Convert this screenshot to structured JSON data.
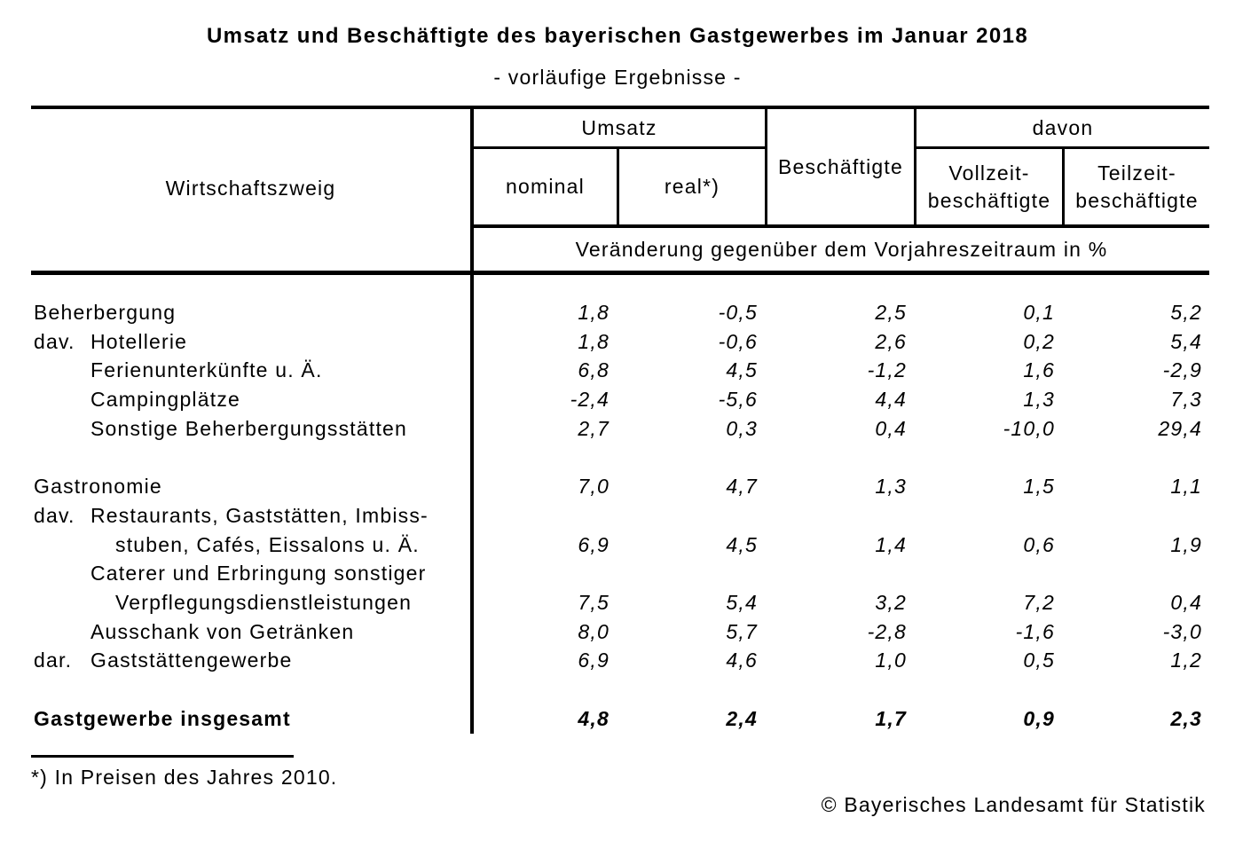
{
  "page": {
    "title": "Umsatz und Beschäftigte des bayerischen Gastgewerbes im Januar 2018",
    "subtitle": "- vorläufige Ergebnisse -",
    "footnote": "*) In Preisen des Jahres 2010.",
    "copyright": "© Bayerisches Landesamt für Statistik"
  },
  "colors": {
    "text": "#000000",
    "background": "#ffffff",
    "line": "#000000"
  },
  "table": {
    "header": {
      "wirtschaftszweig": "Wirtschaftszweig",
      "umsatz": "Umsatz",
      "nominal": "nominal",
      "real": "real*)",
      "beschaeftigte": "Beschäftigte",
      "davon": "davon",
      "vollzeit": [
        "Vollzeit-",
        "beschäftigte"
      ],
      "teilzeit": [
        "Teilzeit-",
        "beschäftigte"
      ],
      "unit": "Veränderung gegenüber dem Vorjahreszeitraum in %"
    },
    "columns": [
      "nominal",
      "real",
      "Beschäftigte",
      "Vollzeitbeschäftigte",
      "Teilzeitbeschäftigte"
    ],
    "rows": [
      {
        "prefix": "",
        "indent": 0,
        "label": "Beherbergung",
        "values": [
          "1,8",
          "-0,5",
          "2,5",
          "0,1",
          "5,2"
        ]
      },
      {
        "prefix": "dav.",
        "indent": 1,
        "label": "Hotellerie",
        "values": [
          "1,8",
          "-0,6",
          "2,6",
          "0,2",
          "5,4"
        ]
      },
      {
        "prefix": "",
        "indent": 1,
        "label": "Ferienunterkünfte u. Ä.",
        "values": [
          "6,8",
          "4,5",
          "-1,2",
          "1,6",
          "-2,9"
        ]
      },
      {
        "prefix": "",
        "indent": 1,
        "label": "Campingplätze",
        "values": [
          "-2,4",
          "-5,6",
          "4,4",
          "1,3",
          "7,3"
        ]
      },
      {
        "prefix": "",
        "indent": 1,
        "label": "Sonstige Beherbergungsstätten",
        "values": [
          "2,7",
          "0,3",
          "0,4",
          "-10,0",
          "29,4"
        ]
      },
      {
        "spacer": true
      },
      {
        "prefix": "",
        "indent": 0,
        "label": "Gastronomie",
        "values": [
          "7,0",
          "4,7",
          "1,3",
          "1,5",
          "1,1"
        ]
      },
      {
        "prefix": "dav.",
        "indent": 1,
        "label": "Restaurants, Gaststätten, Imbiss-",
        "values": [
          "",
          "",
          "",
          "",
          ""
        ]
      },
      {
        "prefix": "",
        "indent": 2,
        "label": "stuben, Cafés, Eissalons u. Ä.",
        "values": [
          "6,9",
          "4,5",
          "1,4",
          "0,6",
          "1,9"
        ]
      },
      {
        "prefix": "",
        "indent": 1,
        "label": "Caterer und Erbringung sonstiger",
        "values": [
          "",
          "",
          "",
          "",
          ""
        ]
      },
      {
        "prefix": "",
        "indent": 2,
        "label": "Verpflegungsdienstleistungen",
        "values": [
          "7,5",
          "5,4",
          "3,2",
          "7,2",
          "0,4"
        ]
      },
      {
        "prefix": "",
        "indent": 1,
        "label": "Ausschank von Getränken",
        "values": [
          "8,0",
          "5,7",
          "-2,8",
          "-1,6",
          "-3,0"
        ]
      },
      {
        "prefix": "dar.",
        "indent": 1,
        "label": "Gaststättengewerbe",
        "values": [
          "6,9",
          "4,6",
          "1,0",
          "0,5",
          "1,2"
        ]
      },
      {
        "spacer": true
      },
      {
        "prefix": "",
        "indent": 0,
        "label": "Gastgewerbe insgesamt",
        "bold": true,
        "values": [
          "4,8",
          "2,4",
          "1,7",
          "0,9",
          "2,3"
        ]
      }
    ]
  }
}
